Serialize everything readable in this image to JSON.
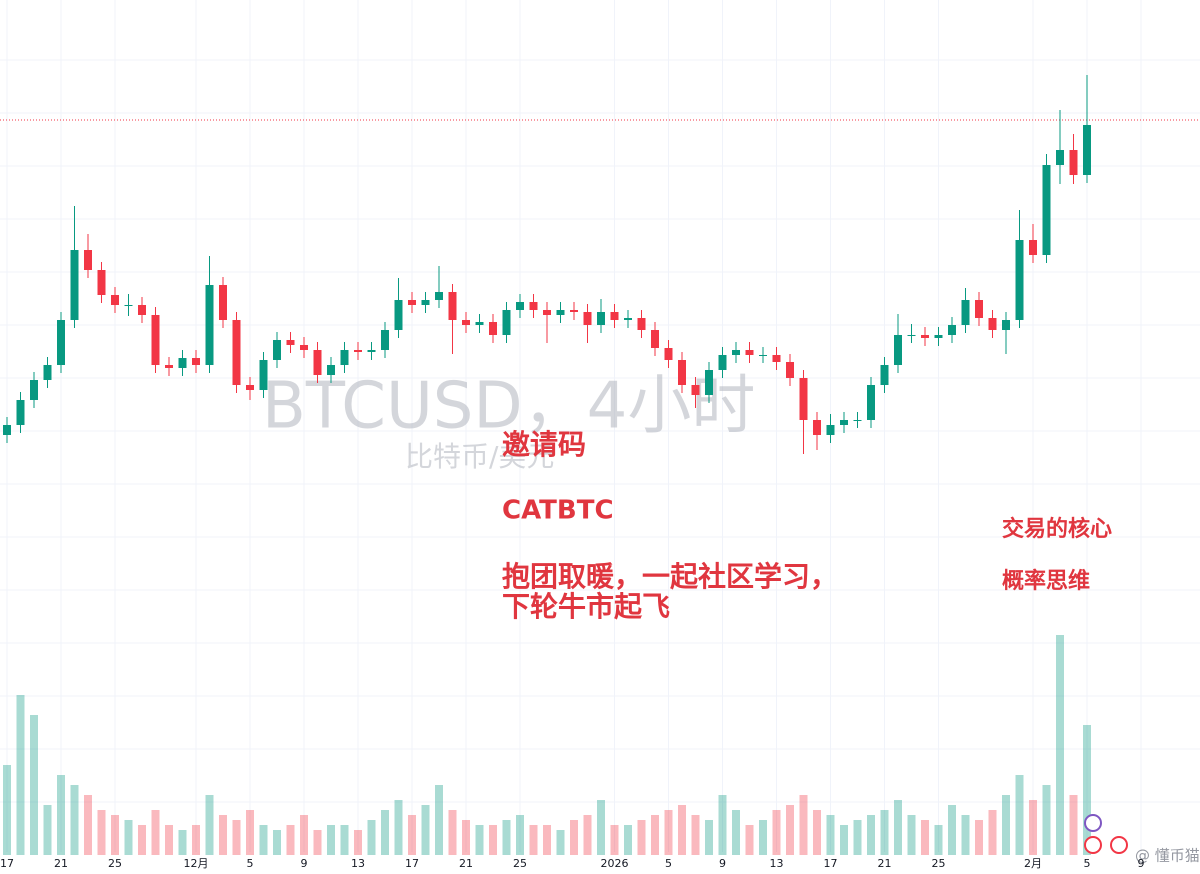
{
  "chart_data": {
    "type": "candlestick",
    "watermark": {
      "title": "BTCUSD，4小时",
      "subtitle": "比特币/美元"
    },
    "annotations": [
      "邀请码",
      "CATBTC",
      "抱团取暖，一起社区学习，",
      "下轮牛市起飞",
      "交易的核心",
      "概率思维"
    ],
    "credit": "@ 懂币猫",
    "categories": [
      "17",
      null,
      null,
      null,
      "21",
      null,
      null,
      null,
      "25",
      null,
      null,
      null,
      null,
      null,
      "12月",
      null,
      null,
      null,
      "5",
      null,
      null,
      null,
      "9",
      null,
      null,
      null,
      "13",
      null,
      null,
      null,
      "17",
      null,
      null,
      null,
      "21",
      null,
      null,
      null,
      "25",
      null,
      null,
      null,
      null,
      null,
      null,
      "2026",
      null,
      null,
      null,
      "5",
      null,
      null,
      null,
      "9",
      null,
      null,
      null,
      "13",
      null,
      null,
      null,
      "17",
      null,
      null,
      null,
      "21",
      null,
      null,
      null,
      "25",
      null,
      null,
      null,
      null,
      null,
      null,
      "2月",
      null,
      null,
      null,
      "5",
      null,
      null,
      null,
      "9"
    ],
    "open": [
      439,
      449,
      474,
      494,
      509,
      554,
      624,
      604,
      579,
      569,
      569,
      559,
      509,
      506,
      516,
      509,
      589,
      554,
      489,
      484,
      514,
      534,
      529,
      524,
      499,
      509,
      524,
      522,
      524,
      544,
      574,
      569,
      574,
      582,
      554,
      549,
      552,
      539,
      564,
      572,
      564,
      559,
      564,
      562,
      549,
      562,
      554,
      556,
      544,
      526,
      514,
      489,
      479,
      504,
      519,
      524,
      519,
      519,
      512,
      496,
      454,
      439,
      449,
      454,
      454,
      489,
      509,
      539,
      539,
      536,
      539,
      549,
      574,
      556,
      544,
      554,
      634,
      619,
      709,
      724,
      699,
      null,
      null,
      null,
      null
    ],
    "high": [
      457,
      482,
      502,
      517,
      562,
      668,
      640,
      612,
      587,
      580,
      577,
      567,
      517,
      524,
      524,
      618,
      597,
      562,
      497,
      522,
      542,
      542,
      537,
      532,
      517,
      532,
      532,
      532,
      552,
      596,
      582,
      582,
      608,
      590,
      562,
      560,
      560,
      572,
      580,
      580,
      572,
      572,
      572,
      570,
      575,
      570,
      564,
      564,
      552,
      534,
      522,
      497,
      512,
      527,
      532,
      532,
      527,
      527,
      520,
      504,
      462,
      460,
      462,
      462,
      497,
      517,
      560,
      550,
      547,
      547,
      557,
      586,
      582,
      564,
      562,
      664,
      650,
      720,
      764,
      740,
      799,
      null,
      null,
      null,
      null
    ],
    "low": [
      431,
      441,
      466,
      486,
      501,
      546,
      596,
      571,
      561,
      558,
      551,
      501,
      498,
      498,
      501,
      501,
      546,
      481,
      474,
      476,
      506,
      521,
      516,
      491,
      491,
      501,
      514,
      514,
      516,
      536,
      561,
      561,
      566,
      520,
      541,
      541,
      531,
      531,
      556,
      556,
      531,
      551,
      554,
      531,
      541,
      546,
      546,
      536,
      518,
      506,
      481,
      466,
      471,
      496,
      511,
      511,
      511,
      504,
      488,
      420,
      424,
      431,
      441,
      446,
      446,
      481,
      501,
      531,
      528,
      528,
      531,
      541,
      548,
      536,
      520,
      546,
      611,
      611,
      690,
      690,
      691,
      null,
      null,
      null,
      null
    ],
    "close": [
      449,
      474,
      494,
      509,
      554,
      624,
      604,
      579,
      569,
      569,
      559,
      509,
      506,
      516,
      509,
      589,
      554,
      489,
      484,
      514,
      534,
      529,
      524,
      499,
      509,
      524,
      522,
      524,
      544,
      574,
      569,
      574,
      582,
      554,
      549,
      552,
      539,
      564,
      572,
      564,
      559,
      564,
      562,
      549,
      562,
      554,
      556,
      544,
      526,
      514,
      489,
      479,
      504,
      519,
      524,
      519,
      519,
      512,
      496,
      454,
      439,
      449,
      454,
      454,
      489,
      509,
      539,
      539,
      536,
      539,
      549,
      574,
      556,
      544,
      554,
      634,
      619,
      709,
      724,
      699,
      749,
      null,
      null,
      null,
      null
    ],
    "volume": [
      90,
      160,
      140,
      50,
      80,
      70,
      60,
      45,
      40,
      35,
      30,
      45,
      30,
      25,
      30,
      60,
      40,
      35,
      45,
      30,
      25,
      30,
      40,
      25,
      30,
      30,
      25,
      35,
      45,
      55,
      40,
      50,
      70,
      45,
      35,
      30,
      30,
      35,
      40,
      30,
      30,
      25,
      35,
      40,
      55,
      30,
      30,
      35,
      40,
      45,
      50,
      40,
      35,
      60,
      45,
      30,
      35,
      45,
      50,
      60,
      45,
      40,
      30,
      35,
      40,
      45,
      55,
      40,
      35,
      30,
      50,
      40,
      35,
      45,
      60,
      80,
      55,
      70,
      220,
      60,
      130,
      null,
      null,
      null,
      null
    ],
    "volume_axis": "y2",
    "ylim": [
      0,
      874
    ],
    "y2lim": [
      0,
      300
    ],
    "price_line": 754,
    "up_color": "#089981",
    "down_color": "#f23645",
    "grid": true
  }
}
